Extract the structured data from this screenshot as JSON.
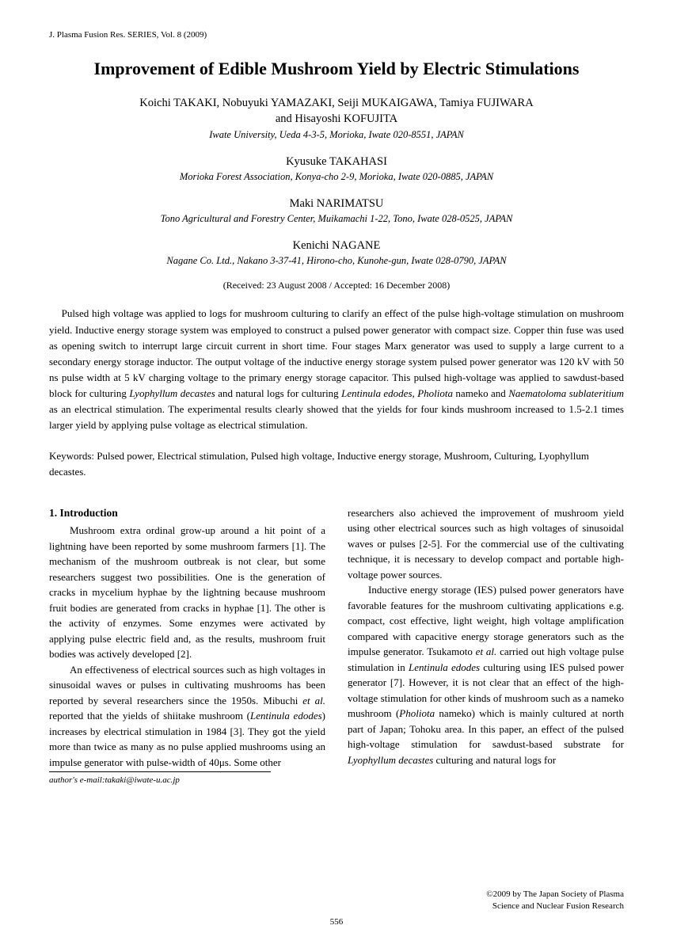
{
  "journal_header": "J. Plasma Fusion Res. SERIES, Vol. 8 (2009)",
  "title": "Improvement of Edible Mushroom Yield by Electric Stimulations",
  "author_blocks": [
    {
      "authors_line1": "Koichi TAKAKI, Nobuyuki YAMAZAKI, Seiji MUKAIGAWA, Tamiya FUJIWARA",
      "authors_line2": "and Hisayoshi KOFUJITA",
      "affiliation": "Iwate University, Ueda 4-3-5, Morioka, Iwate 020-8551, JAPAN"
    },
    {
      "authors_line1": "Kyusuke TAKAHASI",
      "authors_line2": "",
      "affiliation": "Morioka Forest Association, Konya-cho 2-9, Morioka, Iwate 020-0885, JAPAN"
    },
    {
      "authors_line1": "Maki NARIMATSU",
      "authors_line2": "",
      "affiliation": "Tono Agricultural and Forestry Center, Muikamachi 1-22, Tono, Iwate 028-0525, JAPAN"
    },
    {
      "authors_line1": "Kenichi NAGANE",
      "authors_line2": "",
      "affiliation": "Nagane Co. Ltd., Nakano 3-37-41, Hirono-cho, Kunohe-gun, Iwate 028-0790, JAPAN"
    }
  ],
  "dates": "(Received: 23 August 2008 / Accepted: 16 December 2008)",
  "abstract_pre": "Pulsed high voltage was applied to logs for mushroom culturing to clarify an effect of the pulse high-voltage stimulation on mushroom yield. Inductive energy storage system was employed to construct a pulsed power generator with compact size. Copper thin fuse was used as opening switch to interrupt large circuit current in short time. Four stages Marx generator was used to supply a large current to a secondary energy storage inductor. The output voltage of the inductive energy storage system pulsed power generator was 120 kV with 50 ns pulse width at 5 kV charging voltage to the primary energy storage capacitor. This pulsed high-voltage was applied to sawdust-based block for culturing ",
  "abstract_it1": "Lyophyllum decastes",
  "abstract_mid1": " and natural logs for culturing ",
  "abstract_it2": "Lentinula edodes, Pholiota",
  "abstract_mid2": " nameko and ",
  "abstract_it3": "Naematoloma sublateritium",
  "abstract_post": " as an electrical stimulation. The experimental results clearly showed that the yields for four kinds mushroom increased to 1.5-2.1 times larger yield by applying pulse voltage as electrical stimulation.",
  "keywords": "Keywords: Pulsed power, Electrical stimulation, Pulsed high voltage, Inductive energy storage, Mushroom, Culturing, Lyophyllum decastes.",
  "col1": {
    "heading": "1. Introduction",
    "p1": "Mushroom extra ordinal grow-up around a hit point of a lightning have been reported by some mushroom farmers [1]. The mechanism of the mushroom outbreak is not clear, but some researchers suggest two possibilities. One is the generation of cracks in mycelium hyphae by the lightning because mushroom fruit bodies are generated from cracks in hyphae [1]. The other is the activity of enzymes. Some enzymes were activated by applying pulse electric field and, as the results, mushroom fruit bodies was actively developed [2].",
    "p2_pre": "An effectiveness of electrical sources such as high voltages in sinusoidal waves or pulses in cultivating mushrooms has been reported by several researchers since the 1950s. Mibuchi ",
    "p2_it1": "et al.",
    "p2_mid1": " reported that the yields of shiitake mushroom (",
    "p2_it2": "Lentinula edodes",
    "p2_post": ") increases by electrical stimulation in 1984 [3]. They got the yield more than twice as many as no pulse applied mushrooms using an impulse generator with pulse-width of 40μs. Some other"
  },
  "col2": {
    "p1": "researchers also achieved the improvement of mushroom yield using other electrical sources such as high voltages of sinusoidal waves or pulses [2-5]. For the commercial use of the cultivating technique, it is necessary to develop compact and portable high-voltage power sources.",
    "p2_pre": "Inductive energy storage (IES) pulsed power generators have favorable features for the mushroom cultivating applications e.g. compact, cost effective, light weight, high voltage amplification compared with capacitive energy storage generators such as the impulse generator. Tsukamoto ",
    "p2_it1": "et al.",
    "p2_mid1": " carried out high voltage pulse stimulation in ",
    "p2_it2": "Lentinula edodes",
    "p2_mid2": " culturing using IES pulsed power generator [7]. However, it is not clear that an effect of the high-voltage stimulation for other kinds of mushroom such as a nameko mushroom (",
    "p2_it3": "Pholiota",
    "p2_mid3": " nameko) which is mainly cultured at north part of Japan; Tohoku area. In this paper, an effect of the pulsed high-voltage stimulation for sawdust-based substrate for ",
    "p2_it4": "Lyophyllum decastes",
    "p2_post": " culturing and natural logs for"
  },
  "footer_email": "author's e-mail:takaki@iwate-u.ac.jp",
  "copyright_line1": "©2009 by The Japan Society of Plasma",
  "copyright_line2": "Science and Nuclear Fusion Research",
  "page_number": "556"
}
